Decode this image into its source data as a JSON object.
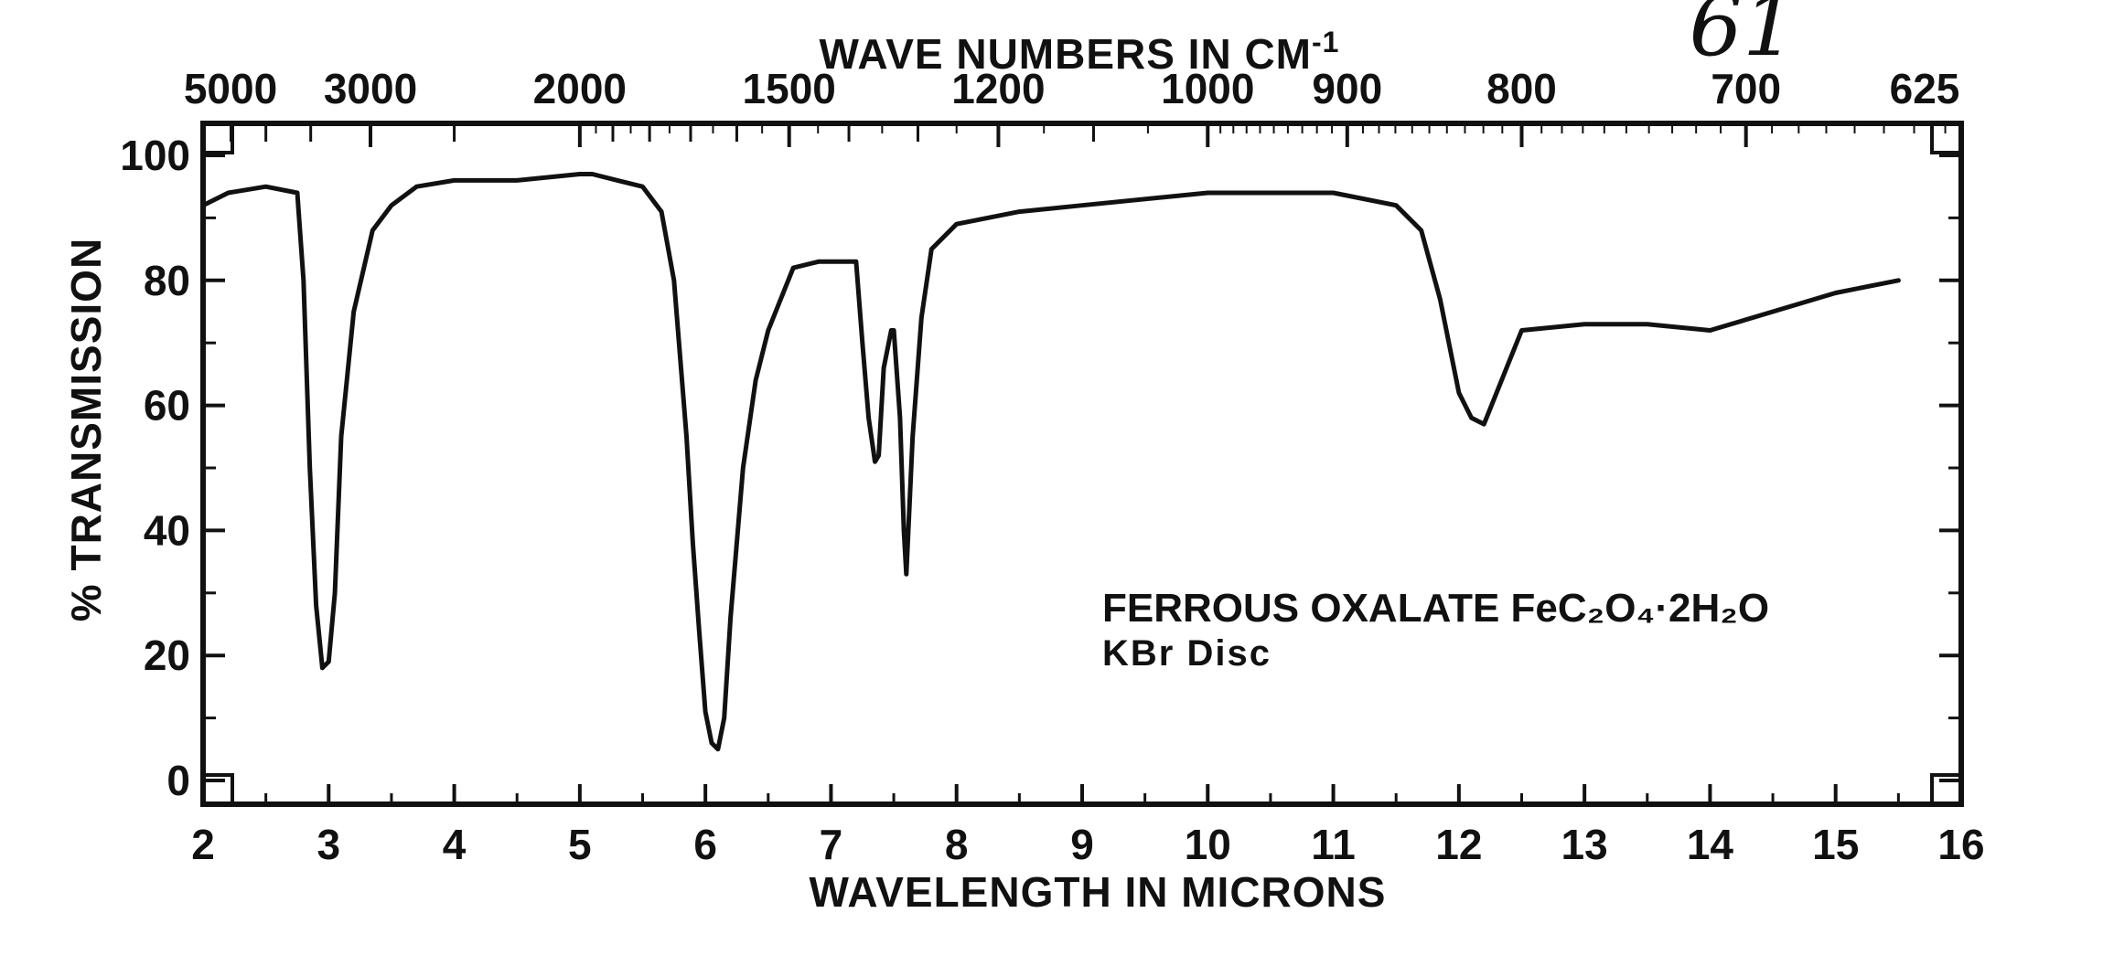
{
  "page_number": "61",
  "chart_data": {
    "type": "line",
    "xlabel": "WAVELENGTH IN MICRONS",
    "ylabel": "% TRANSMISSION",
    "top_axis_label": "WAVE NUMBERS IN CM",
    "top_axis_superscript": "-1",
    "xlim": [
      2,
      16
    ],
    "ylim": [
      0,
      100
    ],
    "x_ticks": [
      "2",
      "3",
      "4",
      "5",
      "6",
      "7",
      "8",
      "9",
      "10",
      "11",
      "12",
      "13",
      "14",
      "15",
      "16"
    ],
    "y_ticks": [
      "0",
      "20",
      "40",
      "60",
      "80",
      "100"
    ],
    "top_ticks": [
      {
        "label": "5000",
        "x": 2.0
      },
      {
        "label": "3000",
        "x": 3.333
      },
      {
        "label": "2000",
        "x": 5.0
      },
      {
        "label": "1500",
        "x": 6.667
      },
      {
        "label": "1200",
        "x": 8.333
      },
      {
        "label": "1000",
        "x": 10.0
      },
      {
        "label": "900",
        "x": 11.111
      },
      {
        "label": "800",
        "x": 12.5
      },
      {
        "label": "700",
        "x": 14.286
      },
      {
        "label": "625",
        "x": 16.0
      }
    ],
    "annotation_line1": "FERROUS OXALATE  FeC₂O₄·2H₂O",
    "annotation_line2": "KBr Disc",
    "grid": false,
    "series": [
      {
        "x": [
          2.0,
          2.2,
          2.5,
          2.75,
          2.8,
          2.85,
          2.9,
          2.95,
          3.0,
          3.05,
          3.1,
          3.2,
          3.35,
          3.5,
          3.7,
          4.0,
          4.5,
          5.0,
          5.1,
          5.3,
          5.5,
          5.65,
          5.75,
          5.85,
          5.9,
          5.95,
          6.0,
          6.05,
          6.1,
          6.15,
          6.2,
          6.3,
          6.4,
          6.5,
          6.7,
          6.9,
          7.0,
          7.1,
          7.2,
          7.25,
          7.3,
          7.35,
          7.38,
          7.42,
          7.48,
          7.5,
          7.55,
          7.58,
          7.6,
          7.65,
          7.72,
          7.8,
          8.0,
          8.5,
          9.0,
          10.0,
          11.0,
          11.5,
          11.7,
          11.85,
          12.0,
          12.1,
          12.2,
          12.3,
          12.5,
          13.0,
          13.5,
          14.0,
          14.5,
          15.0,
          15.5
        ],
        "y": [
          92,
          94,
          95,
          94,
          80,
          50,
          28,
          18,
          19,
          30,
          55,
          75,
          88,
          92,
          95,
          96,
          96,
          97,
          97,
          96,
          95,
          91,
          80,
          55,
          38,
          24,
          11,
          6,
          5,
          10,
          26,
          50,
          64,
          72,
          82,
          83,
          83,
          83,
          83,
          70,
          58,
          51,
          52,
          66,
          72,
          72,
          58,
          40,
          33,
          55,
          74,
          85,
          89,
          91,
          92,
          94,
          94,
          92,
          88,
          77,
          62,
          58,
          57,
          62,
          72,
          73,
          73,
          72,
          75,
          78,
          80
        ]
      }
    ]
  }
}
